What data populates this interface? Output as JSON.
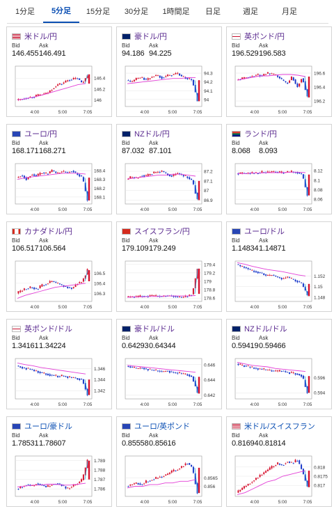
{
  "tabs": [
    {
      "label": "1分足",
      "active": false
    },
    {
      "label": "5分足",
      "active": true
    },
    {
      "label": "15分足",
      "active": false
    },
    {
      "label": "30分足",
      "active": false
    },
    {
      "label": "1時間足",
      "active": false
    },
    {
      "label": "日足",
      "active": false
    },
    {
      "label": "週足",
      "active": false
    },
    {
      "label": "月足",
      "active": false
    }
  ],
  "bid_label": "Bid",
  "ask_label": "Ask",
  "colors": {
    "up": "#d6102d",
    "down": "#1636c9",
    "ma": "#e23dd6",
    "ma2": "#2aa3d8",
    "link": "#5a2a8f"
  },
  "cards": [
    {
      "pair": "米ドル/円",
      "flag": "us-flag",
      "bid": "146.455",
      "ask": "146.491",
      "xticks": [
        "4:00",
        "5:00",
        "7:05"
      ],
      "yticks": [
        "146.4",
        "146.2",
        "146"
      ],
      "ylim": [
        145.88,
        146.62
      ],
      "trend": [
        146.0,
        146.02,
        146.04,
        146.05,
        146.08,
        146.1,
        146.12,
        146.2,
        146.28,
        146.3,
        146.36,
        146.38,
        146.4,
        146.3,
        146.47
      ],
      "ma": [
        146.0,
        146.02,
        146.05,
        146.08,
        146.12,
        146.16,
        146.2,
        146.24,
        146.28,
        146.3
      ],
      "last_drop": false
    },
    {
      "pair": "豪ドル/円",
      "flag": "au-flag",
      "bid": "94.186",
      "ask": "94.225",
      "xticks": [
        "4:00",
        "5:00",
        "7:05"
      ],
      "yticks": [
        "94.3",
        "94.2",
        "94.1",
        "94"
      ],
      "ylim": [
        93.92,
        94.38
      ],
      "trend": [
        94.22,
        94.2,
        94.24,
        94.25,
        94.22,
        94.26,
        94.28,
        94.25,
        94.27,
        94.28,
        94.3,
        94.26,
        94.24,
        94.22,
        93.98
      ],
      "ma": [
        94.18,
        94.19,
        94.2,
        94.21,
        94.22,
        94.23,
        94.24,
        94.24,
        94.25,
        94.25
      ],
      "last_drop": true
    },
    {
      "pair": "英ポンド/円",
      "flag": "gb-flag",
      "bid": "196.529",
      "ask": "196.583",
      "xticks": [
        "4:00",
        "5:00",
        "7:05"
      ],
      "yticks": [
        "196.6",
        "196.4",
        "196.2"
      ],
      "ylim": [
        196.12,
        196.7
      ],
      "trend": [
        196.5,
        196.52,
        196.54,
        196.55,
        196.58,
        196.56,
        196.6,
        196.58,
        196.56,
        196.5,
        196.45,
        196.55,
        196.4,
        196.55,
        196.25
      ],
      "ma": [
        196.5,
        196.52,
        196.54,
        196.56,
        196.56,
        196.57,
        196.58,
        196.58,
        196.57,
        196.55
      ],
      "last_drop": true
    },
    {
      "pair": "ユーロ/円",
      "flag": "eu-flag",
      "bid": "168.171",
      "ask": "168.271",
      "xticks": [
        "4:00",
        "5:00",
        "7:05"
      ],
      "yticks": [
        "168.4",
        "168.3",
        "168.2",
        "168.1"
      ],
      "ylim": [
        168.02,
        168.48
      ],
      "trend": [
        168.32,
        168.35,
        168.3,
        168.36,
        168.34,
        168.38,
        168.36,
        168.4,
        168.37,
        168.39,
        168.38,
        168.4,
        168.36,
        168.32,
        168.06
      ],
      "ma": [
        168.3,
        168.32,
        168.33,
        168.34,
        168.35,
        168.36,
        168.37,
        168.37,
        168.37,
        168.36
      ],
      "last_drop": true
    },
    {
      "pair": "NZドル/円",
      "flag": "nz-flag",
      "bid": "87.032",
      "ask": "87.101",
      "xticks": [
        "4:00",
        "5:00",
        "7:05"
      ],
      "yticks": [
        "87.2",
        "87.1",
        "87",
        "86.9"
      ],
      "ylim": [
        86.86,
        87.28
      ],
      "trend": [
        87.12,
        87.14,
        87.13,
        87.16,
        87.15,
        87.18,
        87.19,
        87.2,
        87.17,
        87.15,
        87.18,
        87.16,
        87.14,
        87.1,
        86.9
      ],
      "ma": [
        87.12,
        87.13,
        87.14,
        87.15,
        87.16,
        87.16,
        87.17,
        87.17,
        87.16,
        87.15
      ],
      "last_drop": true
    },
    {
      "pair": "ランド/円",
      "flag": "za-flag",
      "bid": "8.068",
      "ask": "8.093",
      "xticks": [
        "4:00",
        "5:00",
        "7:05"
      ],
      "yticks": [
        "8.12",
        "8.1",
        "8.08",
        "8.06"
      ],
      "ylim": [
        8.05,
        8.135
      ],
      "trend": [
        8.114,
        8.115,
        8.114,
        8.116,
        8.115,
        8.117,
        8.116,
        8.118,
        8.117,
        8.116,
        8.117,
        8.118,
        8.116,
        8.112,
        8.068
      ],
      "ma": [
        8.114,
        8.114,
        8.115,
        8.115,
        8.116,
        8.116,
        8.116,
        8.117,
        8.117,
        8.116
      ],
      "last_drop": true
    },
    {
      "pair": "カナダドル/円",
      "flag": "ca-flag",
      "bid": "106.517",
      "ask": "106.564",
      "xticks": [
        "4:00",
        "5:00",
        "7:05"
      ],
      "yticks": [
        "106.5",
        "106.4",
        "106.3"
      ],
      "ylim": [
        106.22,
        106.62
      ],
      "trend": [
        106.3,
        106.33,
        106.35,
        106.36,
        106.34,
        106.38,
        106.4,
        106.42,
        106.4,
        106.38,
        106.36,
        106.35,
        106.4,
        106.42,
        106.53
      ],
      "ma": [
        106.25,
        106.28,
        106.3,
        106.32,
        106.34,
        106.36,
        106.37,
        106.38,
        106.39,
        106.4
      ],
      "last_drop": false
    },
    {
      "pair": "スイスフラン/円",
      "flag": "ch-flag",
      "bid": "179.109",
      "ask": "179.249",
      "xticks": [
        "4:00",
        "5:00",
        "7:05"
      ],
      "yticks": [
        "179.4",
        "179.2",
        "179",
        "178.8",
        "178.6"
      ],
      "ylim": [
        178.52,
        179.48
      ],
      "trend": [
        178.62,
        178.64,
        178.63,
        178.65,
        178.64,
        178.66,
        178.65,
        178.64,
        178.66,
        178.65,
        178.63,
        178.62,
        178.64,
        178.7,
        179.3
      ],
      "ma": [
        178.62,
        178.63,
        178.63,
        178.64,
        178.64,
        178.65,
        178.65,
        178.65,
        178.65,
        178.66
      ],
      "last_drop": false
    },
    {
      "pair": "ユーロ/ドル",
      "flag": "eu-us-flag",
      "bid": "1.14834",
      "ask": "1.14871",
      "xticks": [
        "4:00",
        "5:00",
        "7:05"
      ],
      "yticks": [
        "1.152",
        "1.15",
        "1.148"
      ],
      "ylim": [
        1.1472,
        1.1548
      ],
      "trend": [
        1.1542,
        1.1538,
        1.1535,
        1.153,
        1.1528,
        1.1525,
        1.152,
        1.1522,
        1.1518,
        1.1515,
        1.1518,
        1.1514,
        1.151,
        1.1505,
        1.1482
      ],
      "ma": [
        1.1545,
        1.1542,
        1.1538,
        1.1535,
        1.1532,
        1.153,
        1.1528,
        1.1525,
        1.1522,
        1.152
      ],
      "last_drop": true
    },
    {
      "pair": "英ポンド/ドル",
      "flag": "gb-us-flag",
      "bid": "1.34161",
      "ask": "1.34224",
      "xticks": [
        "4:00",
        "5:00",
        "7:05"
      ],
      "yticks": [
        "1.346",
        "1.344",
        "1.342"
      ],
      "ylim": [
        1.3405,
        1.3478
      ],
      "trend": [
        1.3465,
        1.3462,
        1.346,
        1.3458,
        1.3455,
        1.3452,
        1.345,
        1.3448,
        1.3446,
        1.3447,
        1.3445,
        1.3444,
        1.3442,
        1.344,
        1.3412
      ],
      "ma": [
        1.347,
        1.3467,
        1.3465,
        1.3462,
        1.346,
        1.3458,
        1.3456,
        1.3454,
        1.3452,
        1.345
      ],
      "last_drop": true
    },
    {
      "pair": "豪ドル/ドル",
      "flag": "au-us-flag",
      "bid": "0.64293",
      "ask": "0.64344",
      "xticks": [
        "4:00",
        "5:00",
        "7:05"
      ],
      "yticks": [
        "0.646",
        "0.644",
        "0.642"
      ],
      "ylim": [
        0.6415,
        0.6468
      ],
      "trend": [
        0.6458,
        0.6457,
        0.6455,
        0.6456,
        0.6454,
        0.6453,
        0.6452,
        0.6451,
        0.6452,
        0.645,
        0.6449,
        0.6448,
        0.6447,
        0.6444,
        0.6422
      ],
      "ma": [
        0.6459,
        0.6458,
        0.6457,
        0.6456,
        0.6455,
        0.6454,
        0.6453,
        0.6452,
        0.6451,
        0.645
      ],
      "last_drop": true
    },
    {
      "pair": "NZドル/ドル",
      "flag": "nz-us-flag",
      "bid": "0.59419",
      "ask": "0.59466",
      "xticks": [
        "4:00",
        "5:00",
        "7:05"
      ],
      "yticks": [
        "0.596",
        "0.594"
      ],
      "ylim": [
        0.5932,
        0.5985
      ],
      "trend": [
        0.5978,
        0.5976,
        0.5975,
        0.5973,
        0.5972,
        0.5971,
        0.597,
        0.5969,
        0.5968,
        0.5969,
        0.5967,
        0.5966,
        0.5965,
        0.5962,
        0.594
      ],
      "ma": [
        0.598,
        0.5978,
        0.5976,
        0.5975,
        0.5974,
        0.5972,
        0.5971,
        0.597,
        0.5969,
        0.5968
      ],
      "last_drop": true
    },
    {
      "pair": "ユーロ/豪ドル",
      "flag": "eu-au-flag",
      "bid": "1.78531",
      "ask": "1.78607",
      "xticks": [
        "4:00",
        "5:00",
        "7:05"
      ],
      "yticks": [
        "1.789",
        "1.788",
        "1.787",
        "1.786"
      ],
      "ylim": [
        1.7852,
        1.7895
      ],
      "trend": [
        1.786,
        1.7862,
        1.7865,
        1.7863,
        1.7866,
        1.7864,
        1.7862,
        1.7865,
        1.7866,
        1.7864,
        1.786,
        1.7863,
        1.7866,
        1.787,
        1.789
      ],
      "ma": [
        1.7862,
        1.7863,
        1.7864,
        1.7864,
        1.7865,
        1.7865,
        1.7864,
        1.7864,
        1.7865,
        1.7866
      ],
      "last_drop": false
    },
    {
      "pair": "ユーロ/英ポンド",
      "flag": "eu-gb-flag",
      "bid": "0.85558",
      "ask": "0.85616",
      "xticks": [
        "4:00",
        "5:00",
        "7:05"
      ],
      "yticks": [
        "0.8565",
        "0.856"
      ],
      "ylim": [
        0.8554,
        0.8578
      ],
      "trend": [
        0.856,
        0.8561,
        0.8562,
        0.8561,
        0.8563,
        0.8564,
        0.8565,
        0.8566,
        0.8567,
        0.8569,
        0.857,
        0.8572,
        0.8574,
        0.8571,
        0.8556
      ],
      "ma": [
        0.8559,
        0.856,
        0.856,
        0.8561,
        0.8561,
        0.8562,
        0.8562,
        0.8563,
        0.8563,
        0.8564
      ],
      "last_drop": true
    },
    {
      "pair": "米ドル/スイスフラン",
      "flag": "us-ch-flag",
      "bid": "0.81694",
      "ask": "0.81814",
      "xticks": [
        "4:00",
        "5:00",
        "7:05"
      ],
      "yticks": [
        "0.818",
        "0.8175",
        "0.817"
      ],
      "ylim": [
        0.8164,
        0.8186
      ],
      "trend": [
        0.8166,
        0.8168,
        0.817,
        0.8172,
        0.8174,
        0.8176,
        0.8178,
        0.818,
        0.8182,
        0.8181,
        0.8183,
        0.8182,
        0.8184,
        0.8178,
        0.8169
      ],
      "ma": [
        0.8165,
        0.8166,
        0.8168,
        0.817,
        0.8172,
        0.8173,
        0.8175,
        0.8176,
        0.8177,
        0.8178
      ],
      "last_drop": true
    }
  ]
}
